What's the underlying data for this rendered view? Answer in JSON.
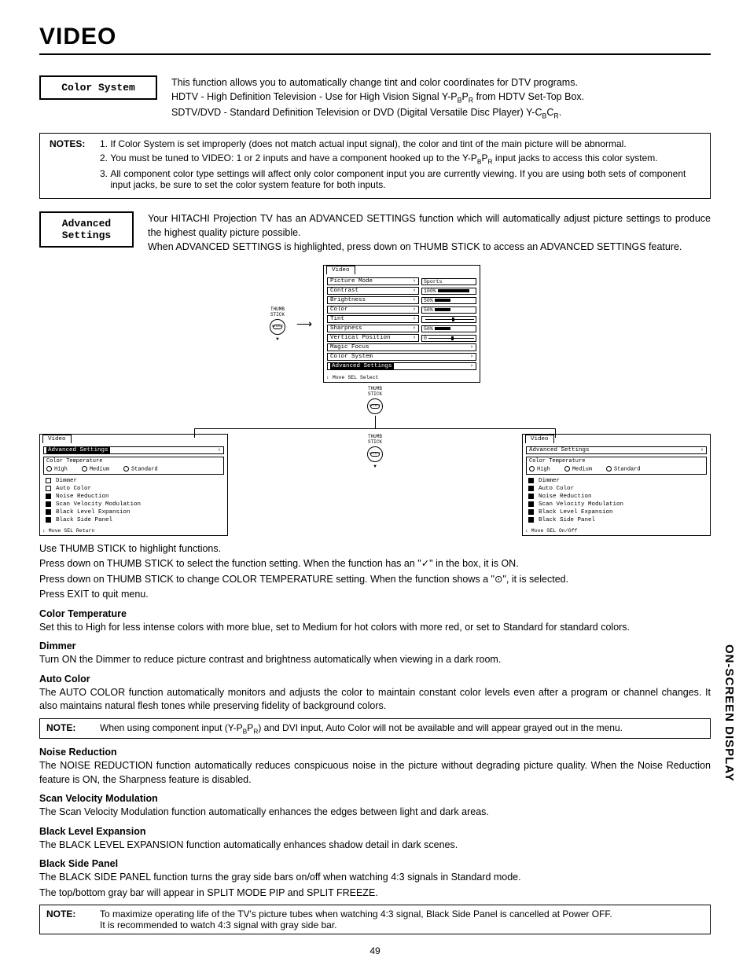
{
  "page": {
    "title": "VIDEO",
    "side_tab": "ON-SCREEN DISPLAY",
    "number": "49"
  },
  "color_system": {
    "label": "Color System",
    "para1": "This function allows you to automatically change tint and color coordinates for DTV programs.",
    "para2": "HDTV - High Definition Television - Use for High Vision Signal Y-P",
    "para2_sub1": "B",
    "para2_mid": "P",
    "para2_sub2": "R",
    "para2_end": " from HDTV Set-Top Box.",
    "para3": "SDTV/DVD - Standard Definition Television or DVD (Digital Versatile Disc Player) Y-C",
    "para3_sub1": "B",
    "para3_mid": "C",
    "para3_sub2": "R",
    "para3_end": "."
  },
  "notes_box": {
    "label": "NOTES:",
    "n1": "If Color System is set improperly (does not match actual input signal), the color and tint of the main picture will be abnormal.",
    "n2a": "You must be tuned to VIDEO: 1 or 2 inputs and have a component hooked up to the Y-P",
    "n2_sub1": "B",
    "n2_mid": "P",
    "n2_sub2": "R",
    "n2b": " input jacks to access this color system.",
    "n3": "All component color type settings will affect only color component input you are currently viewing.  If you are using both sets of component input jacks, be sure to set the color system feature for both inputs."
  },
  "advanced": {
    "label": "Advanced\nSettings",
    "para1": "Your HITACHI Projection TV has an ADVANCED SETTINGS function which will automatically adjust picture settings to produce the highest quality picture possible.",
    "para2": "When ADVANCED SETTINGS is highlighted, press down on THUMB STICK to access an ADVANCED SETTINGS feature."
  },
  "thumb_label": "THUMB\nSTICK",
  "select_label": "SELECT",
  "osd_main": {
    "tab": "Video",
    "rows": [
      {
        "label": "Picture Mode",
        "val": "Sports",
        "type": "text"
      },
      {
        "label": "Contrast",
        "val": "100%",
        "type": "bar",
        "pct": 100
      },
      {
        "label": "Brightness",
        "val": "50%",
        "type": "bar",
        "pct": 50
      },
      {
        "label": "Color",
        "val": "50%",
        "type": "bar",
        "pct": 50
      },
      {
        "label": "Tint",
        "val": "",
        "type": "slider",
        "pos": 55
      },
      {
        "label": "Sharpness",
        "val": "50%",
        "type": "bar",
        "pct": 50
      },
      {
        "label": "Vertical Position",
        "val": "0",
        "type": "slider",
        "pos": 50
      },
      {
        "label": "Magic Focus",
        "type": "sub"
      },
      {
        "label": "Color System",
        "type": "sub"
      },
      {
        "label": "Advanced Settings",
        "type": "sub",
        "hl": true
      }
    ],
    "foot": "↕ Move  SEL Select"
  },
  "osd_adv": {
    "tab": "Video",
    "sub": "Advanced Settings",
    "ct_label": "Color Temperature",
    "ct_opts": [
      "High",
      "Medium",
      "Standard"
    ],
    "items": [
      "Dimmer",
      "Auto Color",
      "Noise Reduction",
      "Scan Velocity Modulation",
      "Black Level Expansion",
      "Black Side Panel"
    ],
    "foot_left": "↕ Move  SEL Return",
    "foot_right": "↕ Move  SEL On/Off"
  },
  "instructions": {
    "l1": "Use THUMB STICK to highlight functions.",
    "l2": "Press down on THUMB STICK to select the function setting. When the function has an \"✓\" in the box, it is ON.",
    "l3": "Press down on THUMB STICK to change COLOR TEMPERATURE setting.  When the function shows a \"⊙\", it is selected.",
    "l4": "Press EXIT to quit menu."
  },
  "sections": {
    "ct_h": "Color Temperature",
    "ct_p": "Set this to High for less intense colors with more blue, set to Medium for hot colors with more red, or set to Standard for standard colors.",
    "dim_h": "Dimmer",
    "dim_p": "Turn ON the Dimmer to reduce picture contrast and brightness automatically when viewing in a dark room.",
    "ac_h": "Auto Color",
    "ac_p": "The AUTO COLOR function automatically monitors and adjusts the color to maintain constant color levels even after a program or channel changes. It also maintains natural flesh tones while preserving fidelity of background colors.",
    "nr_h": "Noise Reduction",
    "nr_p": "The NOISE REDUCTION function automatically reduces conspicuous noise in the picture without degrading picture quality. When the Noise Reduction feature is ON, the Sharpness feature is disabled.",
    "svm_h": "Scan Velocity Modulation",
    "svm_p": "The Scan Velocity Modulation function automatically enhances the edges between light and dark areas.",
    "ble_h": "Black Level Expansion",
    "ble_p": "The BLACK LEVEL EXPANSION function automatically enhances shadow detail in dark scenes.",
    "bsp_h": "Black Side Panel",
    "bsp_p1": "The BLACK SIDE PANEL function turns the gray side bars on/off when watching 4:3 signals in Standard mode.",
    "bsp_p2": "The top/bottom gray bar will appear in SPLIT MODE PIP and SPLIT FREEZE."
  },
  "note_ac": {
    "label": "NOTE:",
    "text_a": "When using component input (Y-P",
    "sub1": "B",
    "mid": "P",
    "sub2": "R",
    "text_b": ") and DVI input, Auto Color will not be available and will appear grayed out in the menu."
  },
  "note_bsp": {
    "label": "NOTE:",
    "l1": "To maximize operating life of the TV's picture tubes when watching 4:3 signal, Black Side Panel is cancelled at Power OFF.",
    "l2": "It is recommended to watch 4:3 signal with gray side bar."
  }
}
